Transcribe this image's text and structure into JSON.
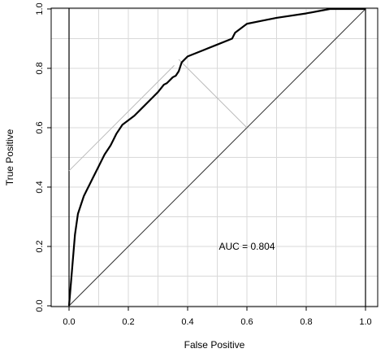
{
  "chart_data": {
    "type": "line",
    "title": "",
    "xlabel": "False Positive",
    "ylabel": "True Positive",
    "xlim": [
      0,
      1
    ],
    "ylim": [
      0,
      1
    ],
    "grid": true,
    "x_ticks": [
      "0.0",
      "0.2",
      "0.4",
      "0.6",
      "0.8",
      "1.0"
    ],
    "y_ticks": [
      "0.0",
      "0.2",
      "0.4",
      "0.6",
      "0.8",
      "1.0"
    ],
    "annotation": "AUC = 0.804",
    "series": [
      {
        "x": [
          0.0,
          0.005,
          0.01,
          0.015,
          0.02,
          0.03,
          0.04,
          0.05,
          0.06,
          0.07,
          0.08,
          0.1,
          0.12,
          0.14,
          0.15,
          0.16,
          0.18,
          0.2,
          0.22,
          0.25,
          0.28,
          0.3,
          0.32,
          0.33,
          0.35,
          0.36,
          0.37,
          0.38,
          0.4,
          0.45,
          0.5,
          0.55,
          0.56,
          0.58,
          0.6,
          0.65,
          0.7,
          0.8,
          0.88,
          0.9,
          1.0
        ],
        "y": [
          0.0,
          0.06,
          0.12,
          0.18,
          0.24,
          0.31,
          0.34,
          0.37,
          0.39,
          0.41,
          0.43,
          0.47,
          0.51,
          0.54,
          0.56,
          0.58,
          0.61,
          0.625,
          0.64,
          0.67,
          0.7,
          0.72,
          0.745,
          0.75,
          0.77,
          0.775,
          0.79,
          0.82,
          0.84,
          0.86,
          0.88,
          0.9,
          0.92,
          0.935,
          0.95,
          0.96,
          0.97,
          0.985,
          1.0,
          1.0,
          1.0
        ]
      },
      {
        "x": [
          0.0,
          1.0
        ],
        "y": [
          0.0,
          1.0
        ]
      },
      {
        "x": [
          0.0,
          0.355
        ],
        "y": [
          0.455,
          0.81
        ]
      },
      {
        "x": [
          0.37,
          0.6
        ],
        "y": [
          0.83,
          0.6
        ]
      }
    ]
  }
}
